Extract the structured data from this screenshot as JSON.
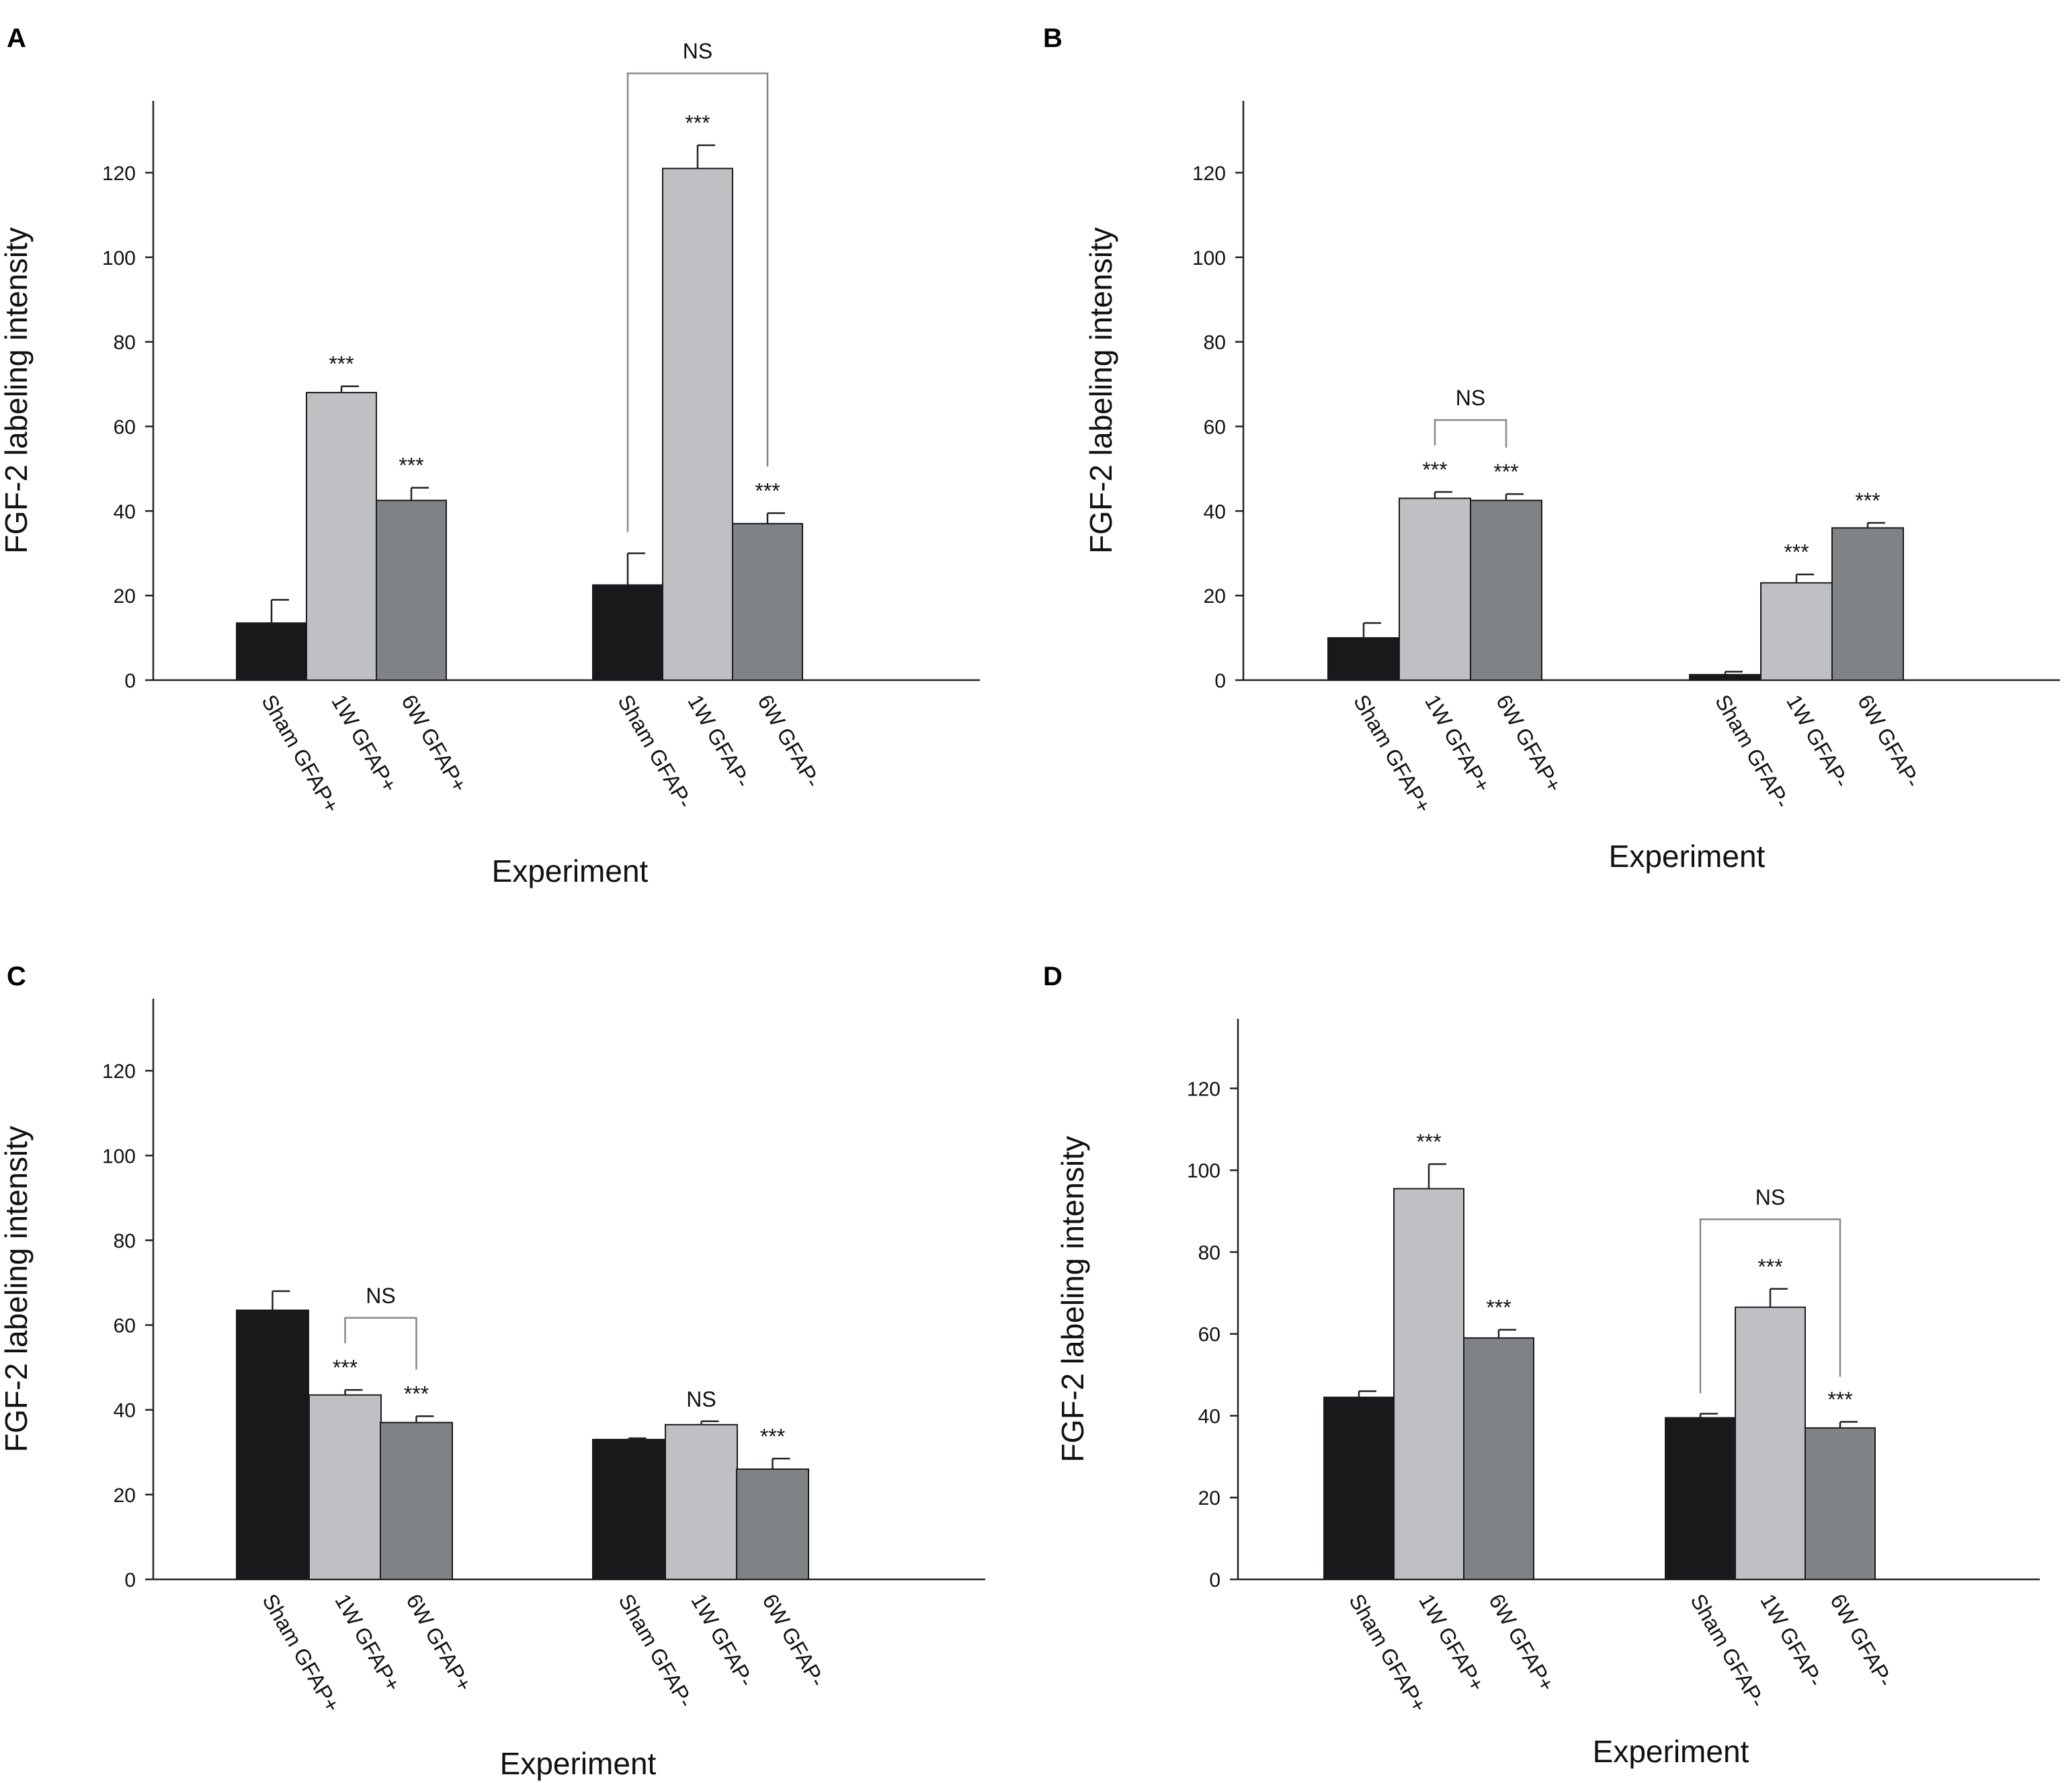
{
  "colors": {
    "sham": "#18191b",
    "week1": "#bfc0c3",
    "week6": "#7f8386",
    "axis": "#222222",
    "bracket": "#888888"
  },
  "chart_data": [
    {
      "panel": "A",
      "type": "bar",
      "categories": [
        "Sham GFAP+",
        "1W GFAP+",
        "6W GFAP+",
        "Sham GFAP-",
        "1W GFAP-",
        "6W GFAP-"
      ],
      "values": [
        13.5,
        68,
        42.5,
        22.5,
        121,
        37
      ],
      "errors": [
        5.5,
        1.5,
        3,
        7.5,
        5.5,
        2.5
      ],
      "significance": [
        "",
        "***",
        "***",
        "",
        "***",
        "***"
      ],
      "brackets": [
        {
          "from": 3,
          "to": 5,
          "label": "NS"
        }
      ],
      "xlabel": "Experiment",
      "ylabel": "FGF-2 labeling intensity",
      "ylim": [
        0,
        137
      ],
      "yticks": [
        0,
        20,
        40,
        60,
        80,
        100,
        120
      ]
    },
    {
      "panel": "B",
      "type": "bar",
      "categories": [
        "Sham GFAP+",
        "1W GFAP+",
        "6W GFAP+",
        "Sham GFAP-",
        "1W GFAP-",
        "6W GFAP-"
      ],
      "values": [
        10,
        43,
        42.5,
        1.3,
        23,
        36
      ],
      "errors": [
        3.5,
        1.5,
        1.5,
        0.7,
        2,
        1.2
      ],
      "significance": [
        "",
        "***",
        "***",
        "",
        "***",
        "***"
      ],
      "brackets": [
        {
          "from": 1,
          "to": 2,
          "label": "NS"
        }
      ],
      "xlabel": "Experiment",
      "ylabel": "FGF-2 labeling intensity",
      "ylim": [
        0,
        137
      ],
      "yticks": [
        0,
        20,
        40,
        60,
        80,
        100,
        120
      ]
    },
    {
      "panel": "C",
      "type": "bar",
      "categories": [
        "Sham GFAP+",
        "1W GFAP+",
        "6W GFAP+",
        "Sham GFAP-",
        "1W GFAP-",
        "6W GFAP-"
      ],
      "values": [
        63.5,
        43.5,
        37,
        33,
        36.5,
        26
      ],
      "errors": [
        4.5,
        1.2,
        1.5,
        0.3,
        0.8,
        2.5
      ],
      "significance": [
        "",
        "***",
        "***",
        "",
        "NS",
        "***"
      ],
      "brackets": [
        {
          "from": 1,
          "to": 2,
          "label": "NS"
        }
      ],
      "xlabel": "Experiment",
      "ylabel": "FGF-2 labeling intensity",
      "ylim": [
        0,
        137
      ],
      "yticks": [
        0,
        20,
        40,
        60,
        80,
        100,
        120
      ]
    },
    {
      "panel": "D",
      "type": "bar",
      "categories": [
        "Sham GFAP+",
        "1W GFAP+",
        "6W GFAP+",
        "Sham GFAP-",
        "1W GFAP-",
        "6W GFAP-"
      ],
      "values": [
        44.5,
        95.5,
        59,
        39.5,
        66.5,
        37
      ],
      "errors": [
        1.5,
        6,
        2,
        1,
        4.5,
        1.5
      ],
      "significance": [
        "",
        "***",
        "***",
        "",
        "***",
        "***"
      ],
      "brackets": [
        {
          "from": 3,
          "to": 5,
          "label": "NS"
        }
      ],
      "xlabel": "Experiment",
      "ylabel": "FGF-2 labeling intensity",
      "ylim": [
        0,
        137
      ],
      "yticks": [
        0,
        20,
        40,
        60,
        80,
        100,
        120
      ]
    }
  ]
}
